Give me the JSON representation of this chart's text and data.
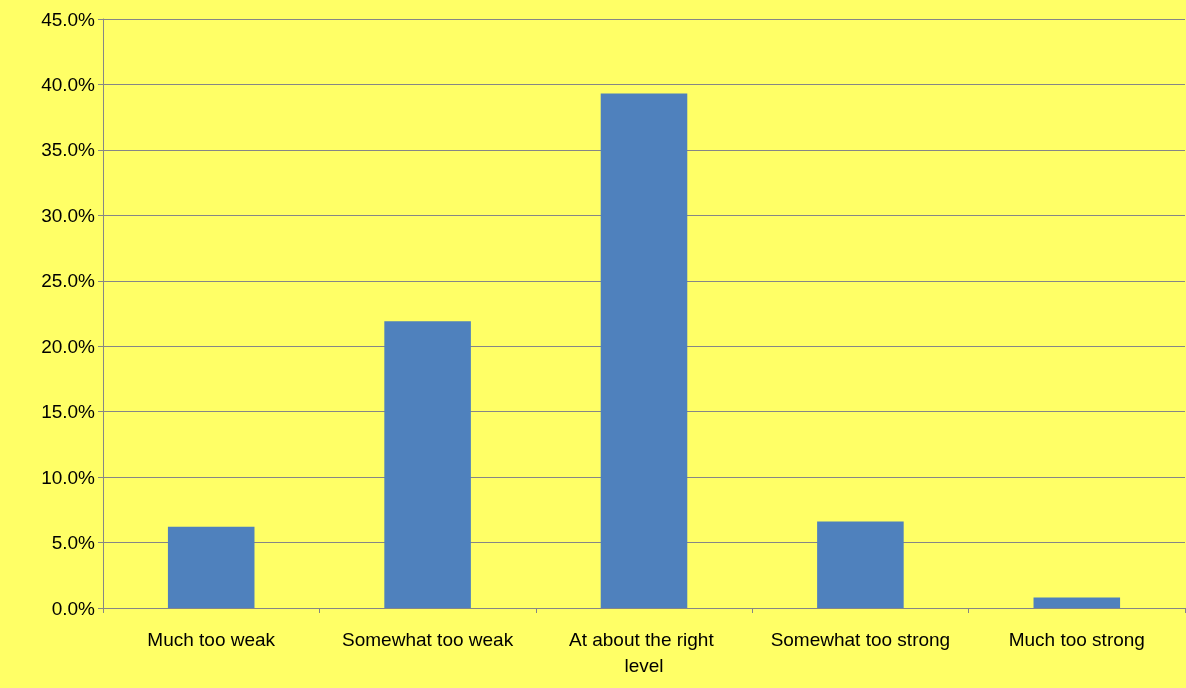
{
  "chart_data": {
    "type": "bar",
    "categories": [
      "Much too weak",
      "Somewhat too weak",
      "At about the right level",
      "Somewhat too strong",
      "Much too strong"
    ],
    "values": [
      6.2,
      21.9,
      39.3,
      6.6,
      0.8
    ],
    "color": "#4f81bd",
    "ylim": [
      0,
      45
    ],
    "yticks": [
      {
        "value": 0,
        "label": "0.0%"
      },
      {
        "value": 5,
        "label": "5.0%"
      },
      {
        "value": 10,
        "label": "10.0%"
      },
      {
        "value": 15,
        "label": "15.0%"
      },
      {
        "value": 20,
        "label": "20.0%"
      },
      {
        "value": 25,
        "label": "25.0%"
      },
      {
        "value": 30,
        "label": "30.0%"
      },
      {
        "value": 35,
        "label": "35.0%"
      },
      {
        "value": 40,
        "label": "40.0%"
      },
      {
        "value": 45,
        "label": "45.0%"
      }
    ],
    "grid": true
  }
}
